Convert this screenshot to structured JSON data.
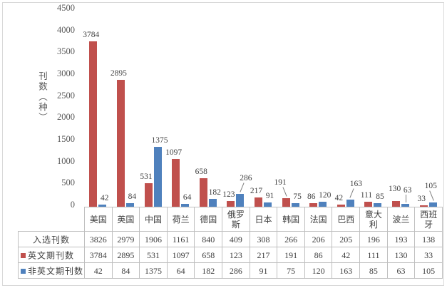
{
  "chart_data": {
    "type": "bar",
    "title": "",
    "ylabel": "刊数（种）",
    "xlabel": "",
    "ylim": [
      0,
      4500
    ],
    "ytick_step": 500,
    "grid": false,
    "legend_position": "table-left",
    "categories": [
      "美国",
      "英国",
      "中国",
      "荷兰",
      "德国",
      "俄罗斯",
      "日本",
      "韩国",
      "法国",
      "巴西",
      "意大利",
      "波兰",
      "西班牙"
    ],
    "series": [
      {
        "name": "英文期刊数",
        "color": "#c0504d",
        "values": [
          3784,
          2895,
          531,
          1097,
          658,
          123,
          217,
          191,
          86,
          42,
          111,
          130,
          33
        ]
      },
      {
        "name": "非英文期刊数",
        "color": "#4f81bd",
        "values": [
          42,
          84,
          1375,
          64,
          182,
          286,
          91,
          75,
          120,
          163,
          85,
          63,
          105
        ]
      }
    ],
    "data_table": {
      "rows": [
        {
          "label": "入选刊数",
          "marker_color": null,
          "values": [
            3826,
            2979,
            1906,
            1161,
            840,
            409,
            308,
            266,
            206,
            205,
            196,
            193,
            138
          ]
        },
        {
          "label": "英文期刊数",
          "marker_color": "#c0504d",
          "values": [
            3784,
            2895,
            531,
            1097,
            658,
            123,
            217,
            191,
            86,
            42,
            111,
            130,
            33
          ]
        },
        {
          "label": "非英文期刊数",
          "marker_color": "#4f81bd",
          "values": [
            42,
            84,
            1375,
            64,
            182,
            286,
            91,
            75,
            120,
            163,
            85,
            63,
            105
          ]
        }
      ]
    },
    "colors": {
      "bar_red": "#c0504d",
      "bar_blue": "#4f81bd",
      "table_border": "#bfbfbf",
      "text": "#404040",
      "axis_text": "#595959",
      "outer_border": "#d9d9d9"
    }
  }
}
